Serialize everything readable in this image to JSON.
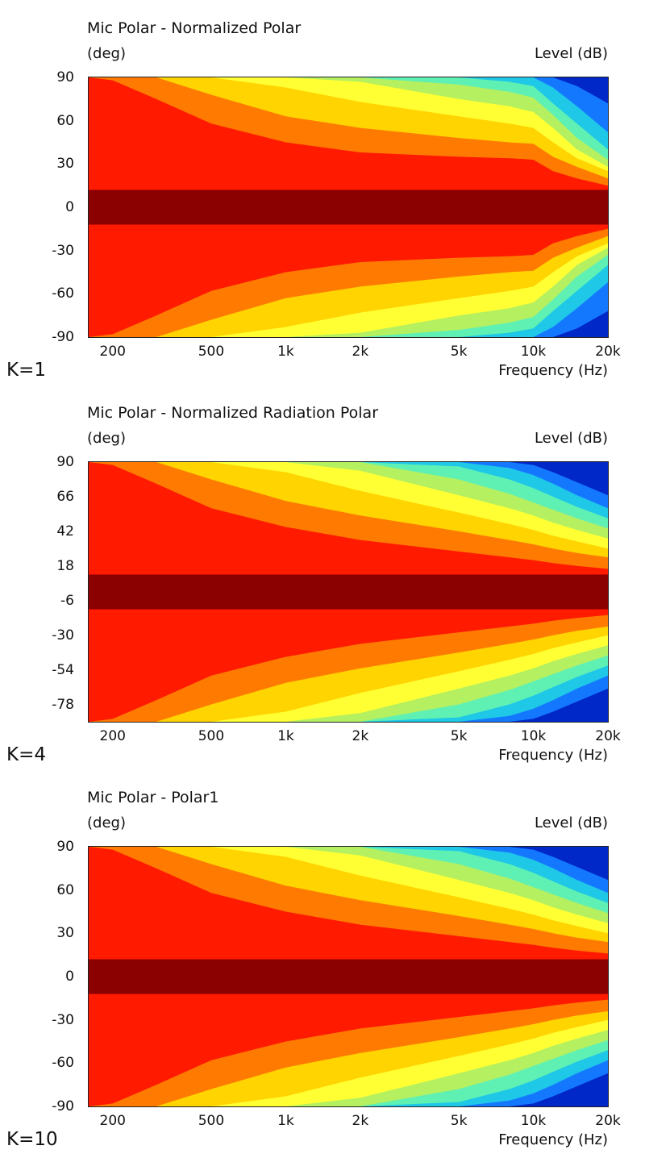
{
  "chart_data": [
    {
      "type": "heatmap",
      "title": "Mic Polar - Normalized Polar",
      "ylabel": "(deg)",
      "zlabel": "Level  (dB)",
      "xlabel": "Frequency  (Hz)",
      "x_scale": "log",
      "xlim": [
        160,
        20000
      ],
      "ylim": [
        -90,
        90
      ],
      "x_tick_labels": [
        "200",
        "500",
        "1k",
        "2k",
        "5k",
        "10k",
        "20k"
      ],
      "x_tick_values": [
        200,
        500,
        1000,
        2000,
        5000,
        10000,
        20000
      ],
      "y_tick_labels": [
        "90",
        "60",
        "30",
        "0",
        "-30",
        "-60",
        "-90"
      ],
      "y_tick_values": [
        90,
        60,
        30,
        0,
        -30,
        -60,
        -90
      ],
      "caption": "K=1",
      "colors": [
        "#8b0000",
        "#ff1a00",
        "#ff7a00",
        "#ffd400",
        "#ffff33",
        "#b4f060",
        "#5ff0b4",
        "#1ec8e6",
        "#1478ff",
        "#0028c8"
      ],
      "contours_deg": {
        "freq_hz": [
          160,
          200,
          300,
          500,
          1000,
          2000,
          5000,
          8000,
          10000,
          12000,
          15000,
          20000
        ],
        "boundaries": [
          [
            12,
            12,
            12,
            12,
            12,
            12,
            12,
            12,
            12,
            12,
            12,
            12
          ],
          [
            90,
            88,
            75,
            58,
            45,
            38,
            35,
            34,
            33,
            25,
            20,
            15
          ],
          [
            90,
            90,
            90,
            78,
            63,
            55,
            48,
            45,
            44,
            35,
            28,
            20
          ],
          [
            90,
            90,
            90,
            90,
            83,
            73,
            63,
            58,
            55,
            45,
            34,
            25
          ],
          [
            90,
            90,
            90,
            90,
            90,
            87,
            75,
            70,
            66,
            55,
            40,
            28
          ],
          [
            90,
            90,
            90,
            90,
            90,
            90,
            85,
            80,
            76,
            64,
            48,
            33
          ],
          [
            90,
            90,
            90,
            90,
            90,
            90,
            90,
            87,
            84,
            72,
            58,
            40
          ],
          [
            90,
            90,
            90,
            90,
            90,
            90,
            90,
            90,
            90,
            83,
            70,
            52
          ],
          [
            90,
            90,
            90,
            90,
            90,
            90,
            90,
            90,
            90,
            90,
            84,
            72
          ]
        ]
      }
    },
    {
      "type": "heatmap",
      "title": "Mic Polar - Normalized Radiation Polar",
      "ylabel": "(deg)",
      "zlabel": "Level  (dB)",
      "xlabel": "Frequency  (Hz)",
      "x_scale": "log",
      "xlim": [
        160,
        20000
      ],
      "ylim": [
        -90,
        90
      ],
      "x_tick_labels": [
        "200",
        "500",
        "1k",
        "2k",
        "5k",
        "10k",
        "20k"
      ],
      "x_tick_values": [
        200,
        500,
        1000,
        2000,
        5000,
        10000,
        20000
      ],
      "y_tick_labels": [
        "90",
        "66",
        "42",
        "18",
        "-6",
        "-30",
        "-54",
        "-78"
      ],
      "y_tick_values": [
        90,
        66,
        42,
        18,
        -6,
        -30,
        -54,
        -78
      ],
      "caption": "K=4",
      "colors": [
        "#8b0000",
        "#ff1a00",
        "#ff7a00",
        "#ffd400",
        "#ffff33",
        "#b4f060",
        "#5ff0b4",
        "#1ec8e6",
        "#1478ff",
        "#0028c8"
      ],
      "contours_deg": {
        "freq_hz": [
          160,
          200,
          300,
          500,
          1000,
          2000,
          5000,
          8000,
          10000,
          12000,
          15000,
          20000
        ],
        "boundaries": [
          [
            12,
            12,
            12,
            12,
            12,
            12,
            12,
            12,
            12,
            12,
            12,
            12
          ],
          [
            90,
            88,
            75,
            58,
            45,
            36,
            28,
            24,
            22,
            20,
            18,
            16
          ],
          [
            90,
            90,
            90,
            78,
            63,
            53,
            42,
            36,
            33,
            30,
            27,
            24
          ],
          [
            90,
            90,
            90,
            90,
            83,
            70,
            55,
            47,
            43,
            39,
            35,
            30
          ],
          [
            90,
            90,
            90,
            90,
            90,
            84,
            67,
            58,
            53,
            48,
            43,
            37
          ],
          [
            90,
            90,
            90,
            90,
            90,
            90,
            78,
            68,
            62,
            57,
            51,
            44
          ],
          [
            90,
            90,
            90,
            90,
            90,
            90,
            87,
            78,
            72,
            66,
            59,
            51
          ],
          [
            90,
            90,
            90,
            90,
            90,
            90,
            90,
            86,
            81,
            75,
            67,
            58
          ],
          [
            90,
            90,
            90,
            90,
            90,
            90,
            90,
            90,
            88,
            83,
            76,
            67
          ]
        ]
      }
    },
    {
      "type": "heatmap",
      "title": "Mic Polar - Polar1",
      "ylabel": "(deg)",
      "zlabel": "Level  (dB)",
      "xlabel": "Frequency  (Hz)",
      "x_scale": "log",
      "xlim": [
        160,
        20000
      ],
      "ylim": [
        -90,
        90
      ],
      "x_tick_labels": [
        "200",
        "500",
        "1k",
        "2k",
        "5k",
        "10k",
        "20k"
      ],
      "x_tick_values": [
        200,
        500,
        1000,
        2000,
        5000,
        10000,
        20000
      ],
      "y_tick_labels": [
        "90",
        "60",
        "30",
        "0",
        "-30",
        "-60",
        "-90"
      ],
      "y_tick_values": [
        90,
        60,
        30,
        0,
        -30,
        -60,
        -90
      ],
      "caption": "K=10",
      "colors": [
        "#8b0000",
        "#ff1a00",
        "#ff7a00",
        "#ffd400",
        "#ffff33",
        "#b4f060",
        "#5ff0b4",
        "#1ec8e6",
        "#1478ff",
        "#0028c8"
      ],
      "contours_deg": {
        "freq_hz": [
          160,
          200,
          300,
          500,
          1000,
          2000,
          5000,
          8000,
          10000,
          12000,
          15000,
          20000
        ],
        "boundaries": [
          [
            12,
            12,
            12,
            12,
            12,
            12,
            12,
            12,
            12,
            12,
            12,
            12
          ],
          [
            90,
            88,
            75,
            58,
            45,
            36,
            28,
            24,
            22,
            20,
            18,
            16
          ],
          [
            90,
            90,
            90,
            78,
            63,
            53,
            42,
            36,
            33,
            30,
            27,
            24
          ],
          [
            90,
            90,
            90,
            90,
            83,
            70,
            55,
            47,
            43,
            39,
            35,
            30
          ],
          [
            90,
            90,
            90,
            90,
            90,
            84,
            67,
            58,
            53,
            48,
            43,
            37
          ],
          [
            90,
            90,
            90,
            90,
            90,
            90,
            78,
            68,
            62,
            57,
            51,
            44
          ],
          [
            90,
            90,
            90,
            90,
            90,
            90,
            87,
            78,
            72,
            66,
            59,
            51
          ],
          [
            90,
            90,
            90,
            90,
            90,
            90,
            90,
            86,
            81,
            75,
            67,
            58
          ],
          [
            90,
            90,
            90,
            90,
            90,
            90,
            90,
            90,
            88,
            83,
            76,
            67
          ]
        ]
      }
    }
  ]
}
